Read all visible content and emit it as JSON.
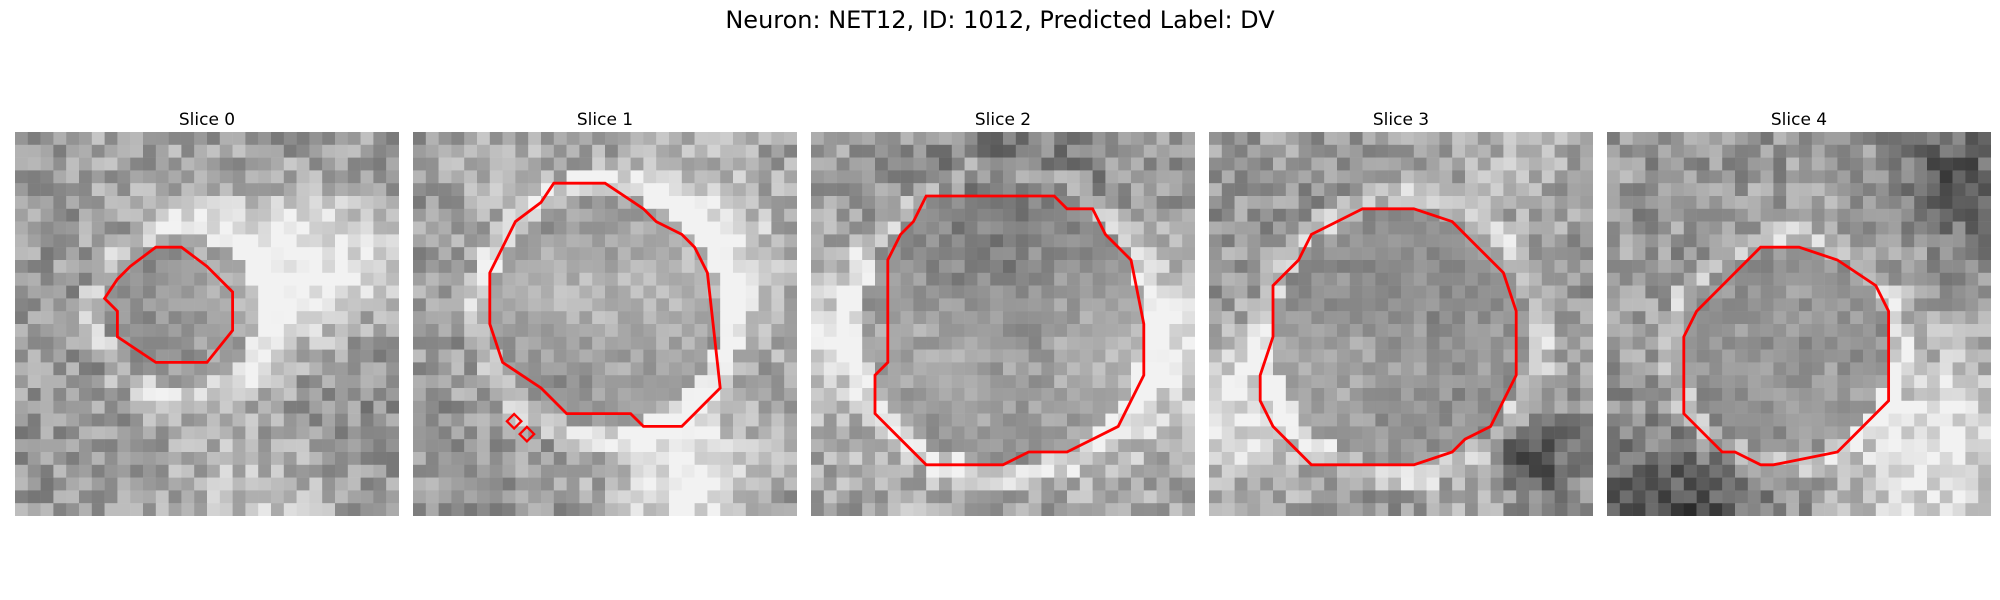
{
  "figure": {
    "title": "Neuron: NET12, ID: 1012, Predicted Label: DV"
  },
  "panels": [
    {
      "title": "Slice 0"
    },
    {
      "title": "Slice 1"
    },
    {
      "title": "Slice 2"
    },
    {
      "title": "Slice 3"
    },
    {
      "title": "Slice 4"
    }
  ],
  "colors": {
    "contour": "#ff0000",
    "background": "#ffffff"
  }
}
